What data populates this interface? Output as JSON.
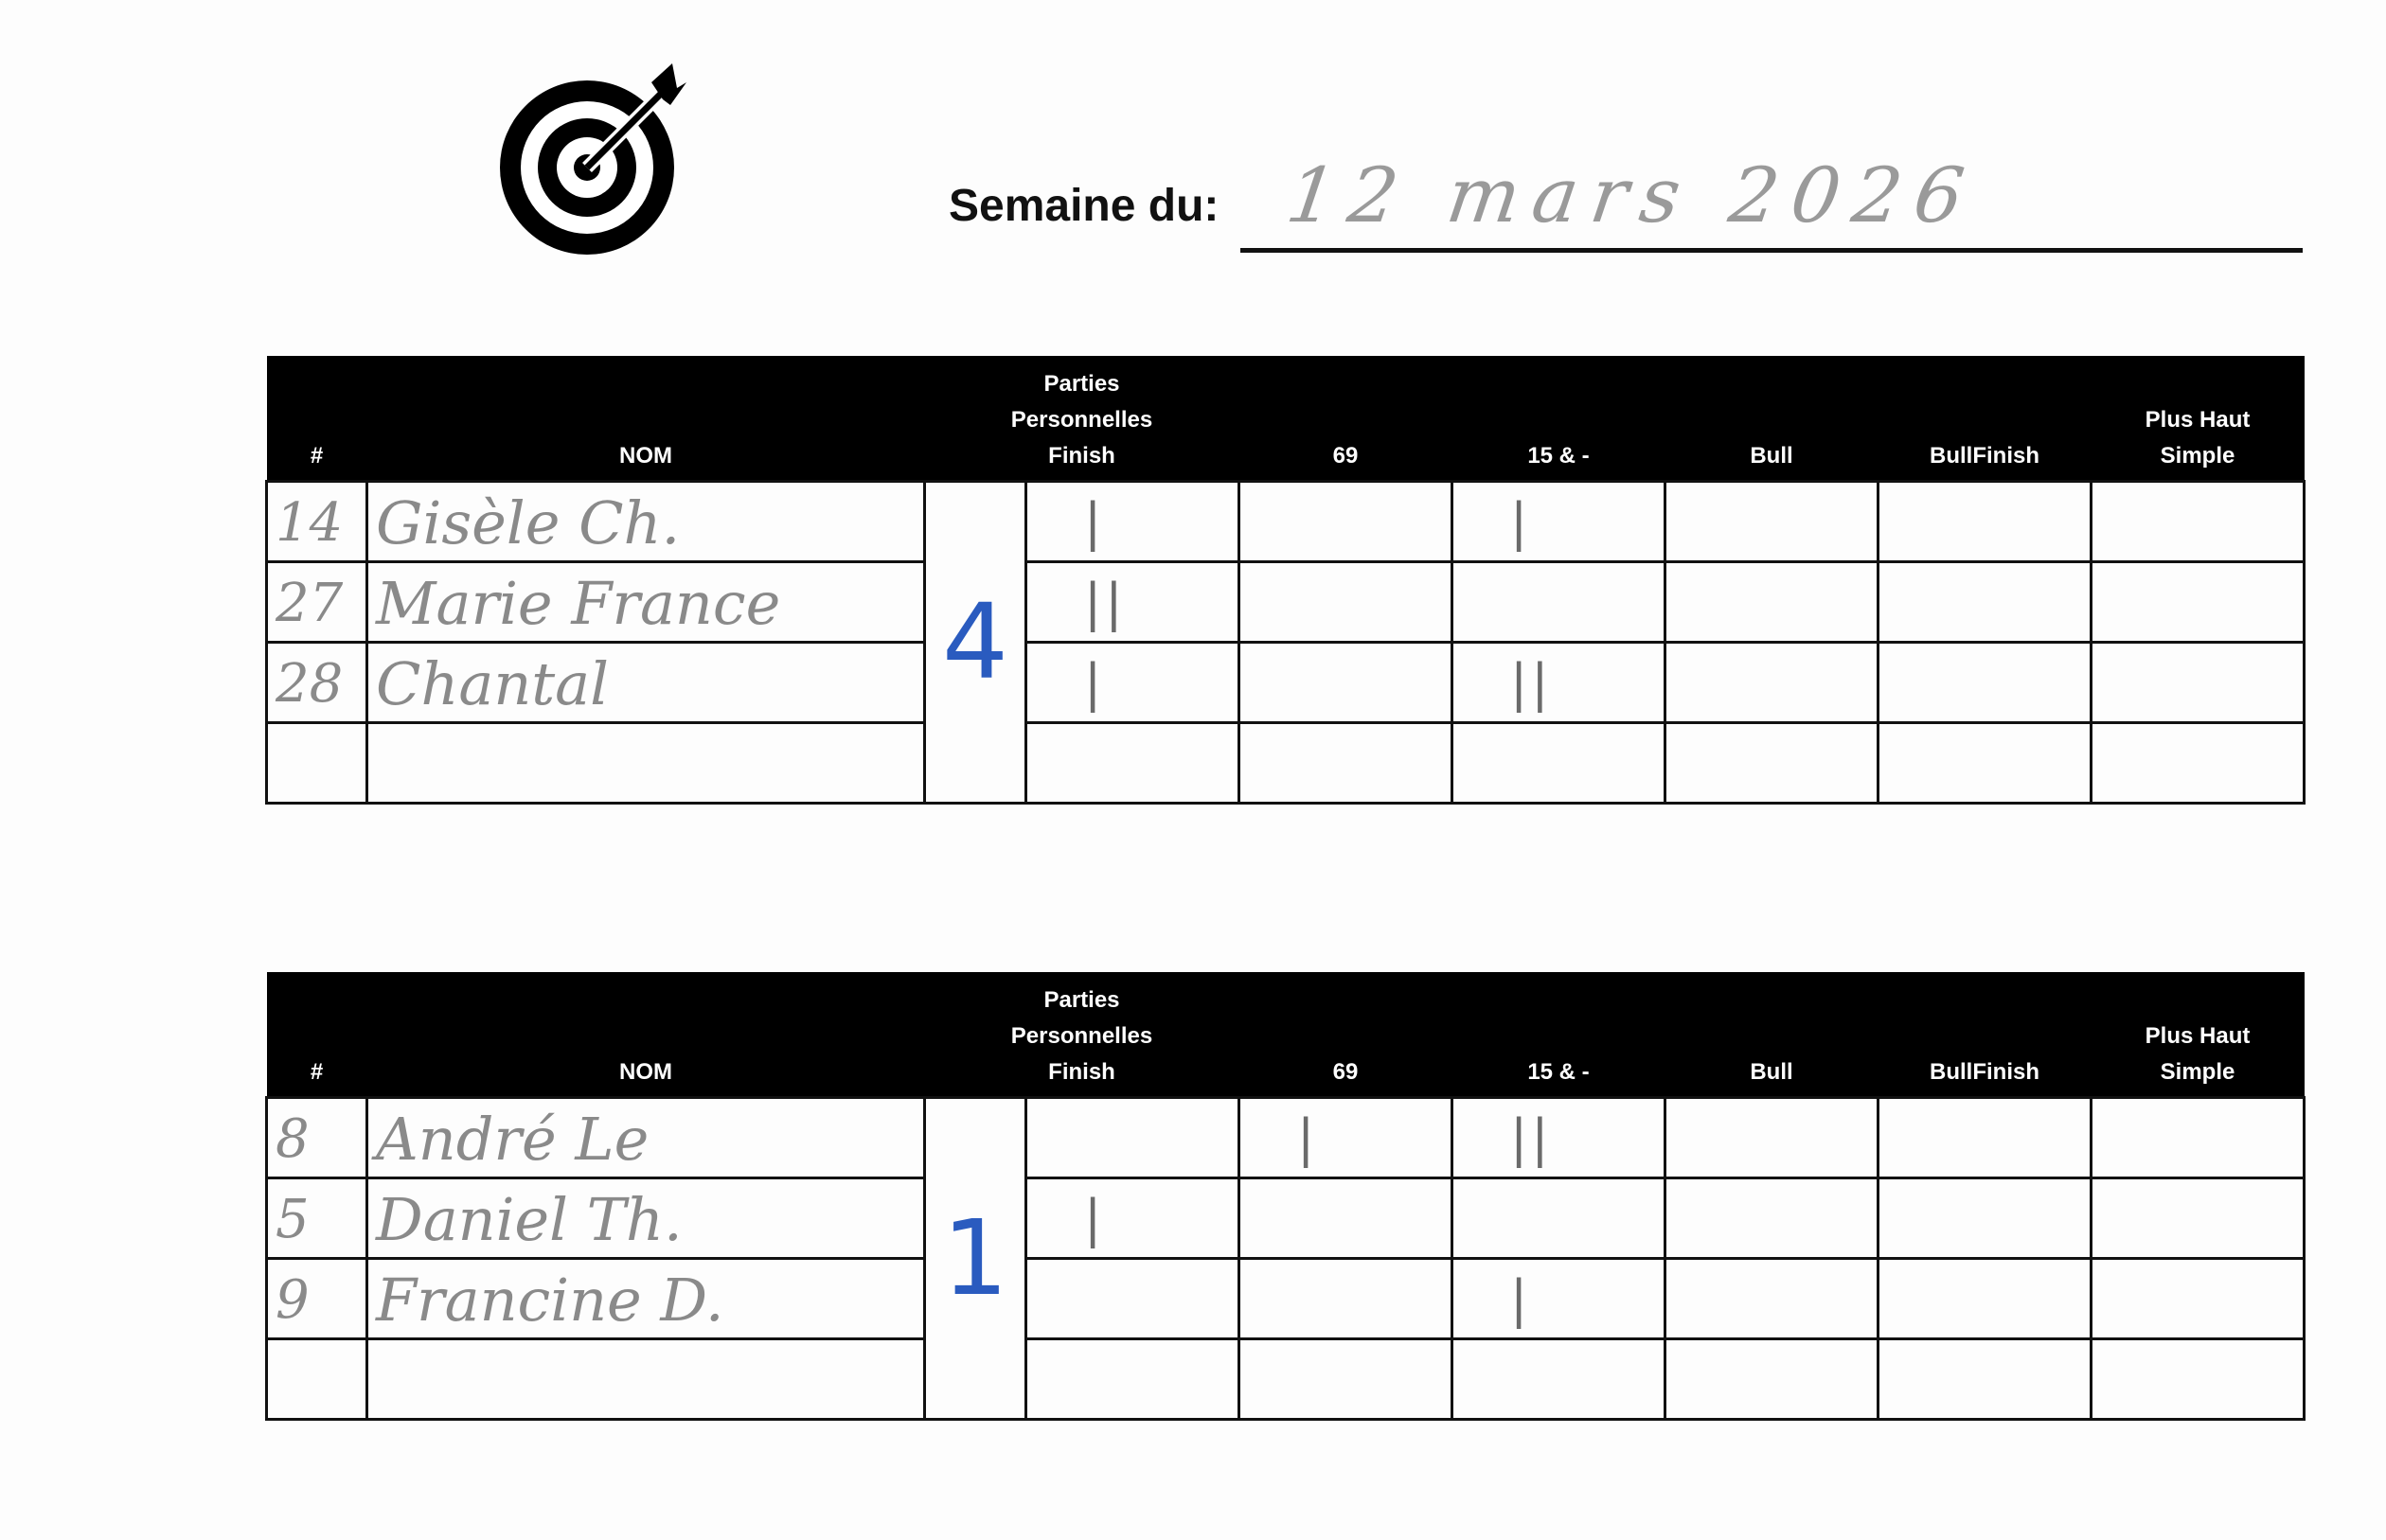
{
  "header": {
    "logo_icon": "dartboard-target-icon",
    "week_label": "Semaine du:",
    "week_value": "12 mars 2026"
  },
  "columns": [
    "#",
    "NOM",
    "Parties Personnelles",
    "Finish",
    "69",
    "15 & -",
    "Bull",
    "BullFinish",
    "Plus Haut Simple"
  ],
  "column_lines": {
    "parties": [
      "Parties",
      "Personnelles"
    ],
    "plus_haut": [
      "Plus Haut",
      "Simple"
    ]
  },
  "colors": {
    "header_bg": "#000000",
    "pencil": "#8a8a8a",
    "blue_ink": "#2a5bbf"
  },
  "teams": [
    {
      "parties_personnelles": "4",
      "rows": [
        {
          "num": "14",
          "nom": "Gisèle Ch.",
          "finish": "|",
          "s69": "",
          "s15": "|",
          "bull": "",
          "bullfinish": "",
          "plushaut": ""
        },
        {
          "num": "27",
          "nom": "Marie France",
          "finish": "||",
          "s69": "",
          "s15": "",
          "bull": "",
          "bullfinish": "",
          "plushaut": ""
        },
        {
          "num": "28",
          "nom": "Chantal",
          "finish": "|",
          "s69": "",
          "s15": "||",
          "bull": "",
          "bullfinish": "",
          "plushaut": ""
        },
        {
          "num": "",
          "nom": "",
          "finish": "",
          "s69": "",
          "s15": "",
          "bull": "",
          "bullfinish": "",
          "plushaut": ""
        }
      ]
    },
    {
      "parties_personnelles": "1",
      "rows": [
        {
          "num": "8",
          "nom": "André Le",
          "finish": "",
          "s69": "|",
          "s15": "||",
          "bull": "",
          "bullfinish": "",
          "plushaut": ""
        },
        {
          "num": "5",
          "nom": "Daniel Th.",
          "finish": "|",
          "s69": "",
          "s15": "",
          "bull": "",
          "bullfinish": "",
          "plushaut": ""
        },
        {
          "num": "9",
          "nom": "Francine D.",
          "finish": "",
          "s69": "",
          "s15": "|",
          "bull": "",
          "bullfinish": "",
          "plushaut": ""
        },
        {
          "num": "",
          "nom": "",
          "finish": "",
          "s69": "",
          "s15": "",
          "bull": "",
          "bullfinish": "",
          "plushaut": ""
        }
      ]
    }
  ]
}
